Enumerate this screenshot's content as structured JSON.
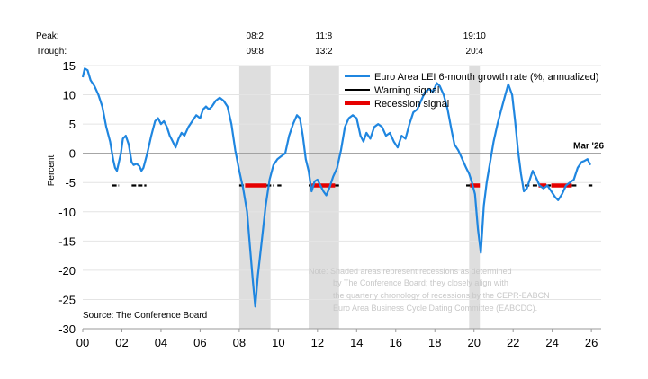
{
  "chart_data": {
    "type": "line",
    "ylabel": "Percent",
    "source": "Source: The Conference Board",
    "ylim": [
      -30,
      15
    ],
    "yticks": [
      15,
      10,
      5,
      0,
      -5,
      -10,
      -15,
      -20,
      -25,
      -30
    ],
    "xlim": [
      2000,
      2026.5
    ],
    "xticks": [
      {
        "year": 2000,
        "label": "00"
      },
      {
        "year": 2002,
        "label": "02"
      },
      {
        "year": 2004,
        "label": "04"
      },
      {
        "year": 2006,
        "label": "06"
      },
      {
        "year": 2008,
        "label": "08"
      },
      {
        "year": 2010,
        "label": "10"
      },
      {
        "year": 2012,
        "label": "12"
      },
      {
        "year": 2014,
        "label": "14"
      },
      {
        "year": 2016,
        "label": "16"
      },
      {
        "year": 2018,
        "label": "18"
      },
      {
        "year": 2020,
        "label": "20"
      },
      {
        "year": 2022,
        "label": "22"
      },
      {
        "year": 2024,
        "label": "24"
      },
      {
        "year": 2026,
        "label": "26"
      }
    ],
    "peak_trough_labels": {
      "peak": "Peak:",
      "trough": "Trough:"
    },
    "recessions": [
      {
        "peak": "08:2",
        "trough": "09:8",
        "start": 2008.0,
        "end": 2009.6
      },
      {
        "peak": "11:8",
        "trough": "13:2",
        "start": 2011.55,
        "end": 2013.1
      },
      {
        "peak": "19:10",
        "trough": "20:4",
        "start": 2019.75,
        "end": 2020.3
      }
    ],
    "series": [
      {
        "name": "Euro Area LEI 6-month growth rate (%, annualized)",
        "color": "#1f86e0",
        "points": [
          [
            2000.0,
            13.0
          ],
          [
            2000.1,
            14.5
          ],
          [
            2000.25,
            14.2
          ],
          [
            2000.4,
            12.5
          ],
          [
            2000.6,
            11.5
          ],
          [
            2000.8,
            10.0
          ],
          [
            2001.0,
            8.0
          ],
          [
            2001.2,
            4.5
          ],
          [
            2001.4,
            2.0
          ],
          [
            2001.55,
            -1.0
          ],
          [
            2001.65,
            -2.5
          ],
          [
            2001.75,
            -3.0
          ],
          [
            2001.85,
            -1.5
          ],
          [
            2001.95,
            0.0
          ],
          [
            2002.05,
            2.5
          ],
          [
            2002.2,
            3.0
          ],
          [
            2002.35,
            1.5
          ],
          [
            2002.5,
            -1.5
          ],
          [
            2002.6,
            -2.0
          ],
          [
            2002.75,
            -1.8
          ],
          [
            2002.9,
            -2.2
          ],
          [
            2003.0,
            -3.0
          ],
          [
            2003.1,
            -2.5
          ],
          [
            2003.3,
            0.0
          ],
          [
            2003.5,
            3.0
          ],
          [
            2003.7,
            5.5
          ],
          [
            2003.85,
            6.0
          ],
          [
            2004.0,
            5.0
          ],
          [
            2004.15,
            5.5
          ],
          [
            2004.3,
            4.5
          ],
          [
            2004.45,
            3.0
          ],
          [
            2004.6,
            2.0
          ],
          [
            2004.75,
            1.0
          ],
          [
            2004.9,
            2.5
          ],
          [
            2005.05,
            3.5
          ],
          [
            2005.2,
            3.0
          ],
          [
            2005.4,
            4.5
          ],
          [
            2005.6,
            5.5
          ],
          [
            2005.8,
            6.5
          ],
          [
            2006.0,
            6.0
          ],
          [
            2006.15,
            7.5
          ],
          [
            2006.3,
            8.0
          ],
          [
            2006.45,
            7.5
          ],
          [
            2006.6,
            8.0
          ],
          [
            2006.8,
            9.0
          ],
          [
            2007.0,
            9.5
          ],
          [
            2007.2,
            9.0
          ],
          [
            2007.4,
            8.0
          ],
          [
            2007.6,
            5.0
          ],
          [
            2007.8,
            0.5
          ],
          [
            2008.0,
            -3.0
          ],
          [
            2008.2,
            -6.0
          ],
          [
            2008.4,
            -10.0
          ],
          [
            2008.55,
            -16.0
          ],
          [
            2008.7,
            -22.0
          ],
          [
            2008.82,
            -26.2
          ],
          [
            2008.95,
            -21.0
          ],
          [
            2009.15,
            -15.0
          ],
          [
            2009.35,
            -9.0
          ],
          [
            2009.55,
            -4.5
          ],
          [
            2009.75,
            -2.0
          ],
          [
            2009.95,
            -1.0
          ],
          [
            2010.15,
            -0.5
          ],
          [
            2010.35,
            0.0
          ],
          [
            2010.55,
            3.0
          ],
          [
            2010.75,
            5.0
          ],
          [
            2010.95,
            6.5
          ],
          [
            2011.1,
            6.0
          ],
          [
            2011.25,
            3.0
          ],
          [
            2011.4,
            -1.0
          ],
          [
            2011.55,
            -3.0
          ],
          [
            2011.7,
            -6.5
          ],
          [
            2011.85,
            -4.8
          ],
          [
            2012.0,
            -4.5
          ],
          [
            2012.15,
            -5.5
          ],
          [
            2012.3,
            -6.5
          ],
          [
            2012.45,
            -7.2
          ],
          [
            2012.6,
            -6.0
          ],
          [
            2012.8,
            -4.0
          ],
          [
            2013.0,
            -2.5
          ],
          [
            2013.2,
            0.5
          ],
          [
            2013.4,
            4.5
          ],
          [
            2013.6,
            6.0
          ],
          [
            2013.8,
            6.5
          ],
          [
            2014.0,
            6.0
          ],
          [
            2014.2,
            3.0
          ],
          [
            2014.35,
            2.0
          ],
          [
            2014.5,
            3.5
          ],
          [
            2014.7,
            2.5
          ],
          [
            2014.9,
            4.5
          ],
          [
            2015.1,
            5.0
          ],
          [
            2015.3,
            4.5
          ],
          [
            2015.5,
            3.0
          ],
          [
            2015.7,
            3.5
          ],
          [
            2015.9,
            2.0
          ],
          [
            2016.1,
            1.0
          ],
          [
            2016.3,
            3.0
          ],
          [
            2016.5,
            2.5
          ],
          [
            2016.7,
            5.0
          ],
          [
            2016.9,
            7.0
          ],
          [
            2017.1,
            7.5
          ],
          [
            2017.3,
            9.0
          ],
          [
            2017.5,
            10.5
          ],
          [
            2017.7,
            11.0
          ],
          [
            2017.9,
            10.5
          ],
          [
            2018.1,
            12.0
          ],
          [
            2018.25,
            11.5
          ],
          [
            2018.45,
            10.0
          ],
          [
            2018.65,
            7.5
          ],
          [
            2018.85,
            4.0
          ],
          [
            2019.0,
            1.5
          ],
          [
            2019.2,
            0.5
          ],
          [
            2019.4,
            -1.0
          ],
          [
            2019.6,
            -2.5
          ],
          [
            2019.75,
            -3.5
          ],
          [
            2019.9,
            -5.0
          ],
          [
            2020.05,
            -7.0
          ],
          [
            2020.2,
            -13.0
          ],
          [
            2020.35,
            -17.0
          ],
          [
            2020.5,
            -9.0
          ],
          [
            2020.65,
            -5.0
          ],
          [
            2020.85,
            -1.0
          ],
          [
            2021.0,
            2.0
          ],
          [
            2021.2,
            5.0
          ],
          [
            2021.4,
            7.5
          ],
          [
            2021.6,
            10.0
          ],
          [
            2021.75,
            11.8
          ],
          [
            2021.95,
            10.0
          ],
          [
            2022.1,
            5.5
          ],
          [
            2022.25,
            0.5
          ],
          [
            2022.4,
            -3.5
          ],
          [
            2022.55,
            -6.5
          ],
          [
            2022.7,
            -6.0
          ],
          [
            2022.85,
            -4.5
          ],
          [
            2023.0,
            -3.0
          ],
          [
            2023.15,
            -4.0
          ],
          [
            2023.35,
            -5.5
          ],
          [
            2023.55,
            -6.0
          ],
          [
            2023.75,
            -5.5
          ],
          [
            2023.95,
            -6.5
          ],
          [
            2024.15,
            -7.5
          ],
          [
            2024.3,
            -8.0
          ],
          [
            2024.5,
            -7.0
          ],
          [
            2024.7,
            -5.5
          ],
          [
            2024.9,
            -5.0
          ],
          [
            2025.1,
            -4.5
          ],
          [
            2025.3,
            -2.5
          ],
          [
            2025.5,
            -1.5
          ],
          [
            2025.65,
            -1.3
          ],
          [
            2025.8,
            -1.0
          ],
          [
            2025.95,
            -2.0
          ]
        ]
      },
      {
        "name": "Warning signal",
        "color": "#000000",
        "level": -5.5,
        "segments": [
          [
            2001.5,
            2001.85
          ],
          [
            2002.5,
            2003.25
          ],
          [
            2008.0,
            2008.3
          ],
          [
            2009.4,
            2009.75
          ],
          [
            2009.95,
            2010.15
          ],
          [
            2011.55,
            2011.7
          ],
          [
            2012.9,
            2013.1
          ],
          [
            2019.6,
            2019.8
          ],
          [
            2022.6,
            2022.85
          ],
          [
            2023.0,
            2023.3
          ],
          [
            2023.7,
            2023.95
          ],
          [
            2025.0,
            2025.3
          ],
          [
            2025.85,
            2026.05
          ]
        ]
      },
      {
        "name": "Recession signal",
        "color": "#e60000",
        "level": -5.5,
        "segments": [
          [
            2008.3,
            2009.4
          ],
          [
            2011.7,
            2012.9
          ],
          [
            2019.8,
            2020.3
          ],
          [
            2023.3,
            2023.7
          ],
          [
            2023.95,
            2025.0
          ]
        ]
      }
    ],
    "annotation": {
      "text": "Mar '26",
      "x": 2025.95,
      "y": -2.0
    },
    "note": [
      "Note: Shaded areas represent recessions as determined",
      "by The Conference Board; they closely align with",
      "the quarterly chronology of recessions by the CEPR-EABCN",
      "Euro Area Business Cycle Dating Committee (EABCDC)."
    ]
  }
}
